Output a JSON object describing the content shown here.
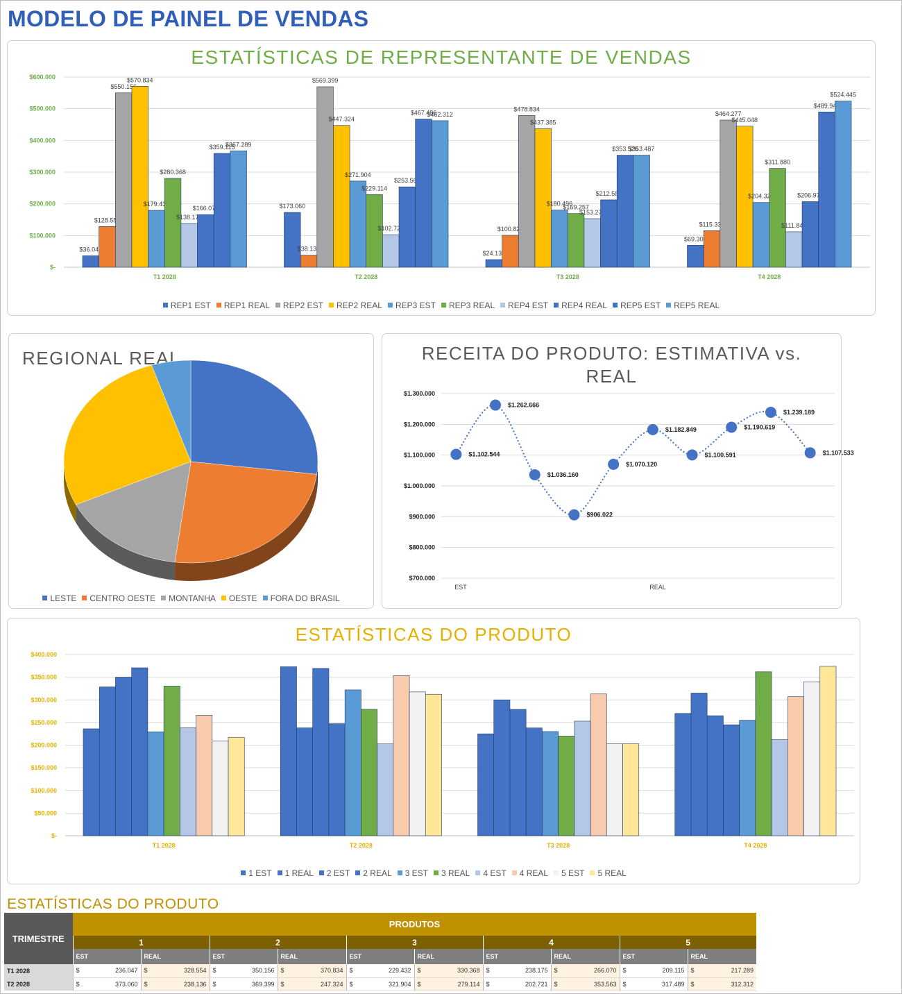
{
  "title": "MODELO DE PAINEL DE VENDAS",
  "colors": {
    "title": "#2f5fb8",
    "green_title": "#70ad47",
    "gold_title": "#e5b100",
    "rep_series": [
      "#4472c4",
      "#ed7d31",
      "#a5a5a5",
      "#ffc000",
      "#5b9bd5",
      "#70ad47",
      "#b4c7e7",
      "#4472c4",
      "#4472c4",
      "#5b9bd5"
    ],
    "prod_series": [
      "#4472c4",
      "#4472c4",
      "#4472c4",
      "#4472c4",
      "#5b9bd5",
      "#70ad47",
      "#b4c7e7",
      "#f8cbad",
      "#f2f2f2",
      "#ffe699"
    ],
    "pie": [
      "#4472c4",
      "#ed7d31",
      "#a5a5a5",
      "#ffc000",
      "#5b9bd5"
    ]
  },
  "chart_data": [
    {
      "id": "rep",
      "type": "bar",
      "title": "ESTATÍSTICAS DE REPRESENTANTE DE VENDAS",
      "categories": [
        "T1 2028",
        "T2 2028",
        "T3 2028",
        "T4 2028"
      ],
      "ylim": [
        0,
        600000
      ],
      "yticks": [
        0,
        100000,
        200000,
        300000,
        400000,
        500000,
        600000
      ],
      "ytick_labels": [
        "$-",
        "$100.000",
        "$200.000",
        "$300.000",
        "$400.000",
        "$500.000",
        "$600.000"
      ],
      "legend": "bottom",
      "series": [
        {
          "name": "REP1 EST",
          "values": [
            36047,
            173060,
            24132,
            69305
          ],
          "labels": [
            "$36.047",
            "$173.060",
            "$24.132",
            "$69.305"
          ]
        },
        {
          "name": "REP1 REAL",
          "values": [
            128554,
            38136,
            100822,
            115337
          ],
          "labels": [
            "$128.554",
            "$38.136",
            "$100.822",
            "$115.337"
          ]
        },
        {
          "name": "REP2 EST",
          "values": [
            550156,
            569399,
            478834,
            464277
          ],
          "labels": [
            "$550.156",
            "$569.399",
            "$478.834",
            "$464.277"
          ]
        },
        {
          "name": "REP2 REAL",
          "values": [
            570834,
            447324,
            437385,
            445048
          ],
          "labels": [
            "$570.834",
            "$447.324",
            "$437.385",
            "$445.048"
          ]
        },
        {
          "name": "REP3 EST",
          "values": [
            179432,
            271904,
            180496,
            204328
          ],
          "labels": [
            "$179.432",
            "$271.904",
            "$180.496",
            "$204.328"
          ]
        },
        {
          "name": "REP3 REAL",
          "values": [
            280368,
            229114,
            169257,
            311880
          ],
          "labels": [
            "$280.368",
            "$229.114",
            "$169.257",
            "$311.880"
          ]
        },
        {
          "name": "REP4 EST",
          "values": [
            138175,
            102721,
            153279,
            111847
          ],
          "labels": [
            "$138.175",
            "$102.721",
            "$153.279",
            "$111.847"
          ]
        },
        {
          "name": "REP4 REAL",
          "values": [
            166070,
            253563,
            212586,
            206970
          ],
          "labels": [
            "$166.070",
            "$253.563",
            "$212.586",
            "$206.970"
          ]
        },
        {
          "name": "REP5 EST",
          "values": [
            359115,
            467486,
            353526,
            489945
          ],
          "labels": [
            "$359.115",
            "$467.486",
            "$353.526",
            "$489.945"
          ]
        },
        {
          "name": "REP5 REAL",
          "values": [
            367289,
            462312,
            353487,
            524445
          ],
          "labels": [
            "$367.289",
            "$462.312",
            "$353.487",
            "$524.445"
          ]
        }
      ]
    },
    {
      "id": "pie",
      "type": "pie",
      "title": "REGIONAL REAL",
      "legend": "bottom",
      "slices": [
        {
          "name": "LESTE",
          "value": 27
        },
        {
          "name": "CENTRO OESTE",
          "value": 25
        },
        {
          "name": "MONTANHA",
          "value": 16
        },
        {
          "name": "OESTE",
          "value": 27
        },
        {
          "name": "FORA DO BRASIL",
          "value": 5
        }
      ]
    },
    {
      "id": "line",
      "type": "line",
      "title": "RECEITA DO PRODUTO: ESTIMATIVA vs. REAL",
      "xticks": [
        "EST",
        "REAL"
      ],
      "ylim": [
        700000,
        1300000
      ],
      "yticks": [
        700000,
        800000,
        900000,
        1000000,
        1100000,
        1200000,
        1300000
      ],
      "ytick_labels": [
        "$700.000",
        "$800.000",
        "$900.000",
        "$1.000.000",
        "$1.100.000",
        "$1.200.000",
        "$1.300.000"
      ],
      "values": [
        1102544,
        1262666,
        1036160,
        906022,
        1070120,
        1182849,
        1100591,
        1190619,
        1239189,
        1107533
      ],
      "labels": [
        "$1.102.544",
        "$1.262.666",
        "$1.036.160",
        "$906.022",
        "$1.070.120",
        "$1.182.849",
        "$1.100.591",
        "$1.190.619",
        "$1.239.189",
        "$1.107.533"
      ]
    },
    {
      "id": "prod",
      "type": "bar",
      "title": "ESTATÍSTICAS DO PRODUTO",
      "categories": [
        "T1 2028",
        "T2 2028",
        "T3 2028",
        "T4 2028"
      ],
      "ylim": [
        0,
        400000
      ],
      "yticks": [
        0,
        50000,
        100000,
        150000,
        200000,
        250000,
        300000,
        350000,
        400000
      ],
      "ytick_labels": [
        "$-",
        "$50.000",
        "$100.000",
        "$150.000",
        "$200.000",
        "$250.000",
        "$300.000",
        "$350.000",
        "$400.000"
      ],
      "legend": "bottom",
      "series": [
        {
          "name": "1 EST",
          "values": [
            236047,
            373060,
            225000,
            270000
          ]
        },
        {
          "name": "1 REAL",
          "values": [
            328554,
            238136,
            300000,
            315000
          ]
        },
        {
          "name": "2 EST",
          "values": [
            350156,
            369399,
            279000,
            265000
          ]
        },
        {
          "name": "2 REAL",
          "values": [
            370834,
            247324,
            238000,
            245000
          ]
        },
        {
          "name": "3 EST",
          "values": [
            229432,
            321904,
            230000,
            255000
          ]
        },
        {
          "name": "3 REAL",
          "values": [
            330368,
            279114,
            220000,
            362000
          ]
        },
        {
          "name": "4 EST",
          "values": [
            238175,
            202721,
            253000,
            212000
          ]
        },
        {
          "name": "4 REAL",
          "values": [
            266070,
            353563,
            313000,
            307000
          ]
        },
        {
          "name": "5 EST",
          "values": [
            209115,
            317489,
            203000,
            340000
          ]
        },
        {
          "name": "5 REAL",
          "values": [
            217289,
            312312,
            203000,
            374000
          ]
        }
      ]
    }
  ],
  "table": {
    "title": "ESTATÍSTICAS DO PRODUTO",
    "trimestre": "TRIMESTRE",
    "produtos": "PRODUTOS",
    "products": [
      "1",
      "2",
      "3",
      "4",
      "5"
    ],
    "sub": [
      "EST",
      "REAL"
    ],
    "currency": "$",
    "rows": [
      {
        "q": "T1 2028",
        "vals": [
          "236.047",
          "328.554",
          "350.156",
          "370.834",
          "229.432",
          "330.368",
          "238.175",
          "266.070",
          "209.115",
          "217.289"
        ]
      },
      {
        "q": "T2 2028",
        "vals": [
          "373.060",
          "238.136",
          "369.399",
          "247.324",
          "321.904",
          "279.114",
          "202.721",
          "353.563",
          "317.489",
          "312.312"
        ]
      }
    ]
  }
}
